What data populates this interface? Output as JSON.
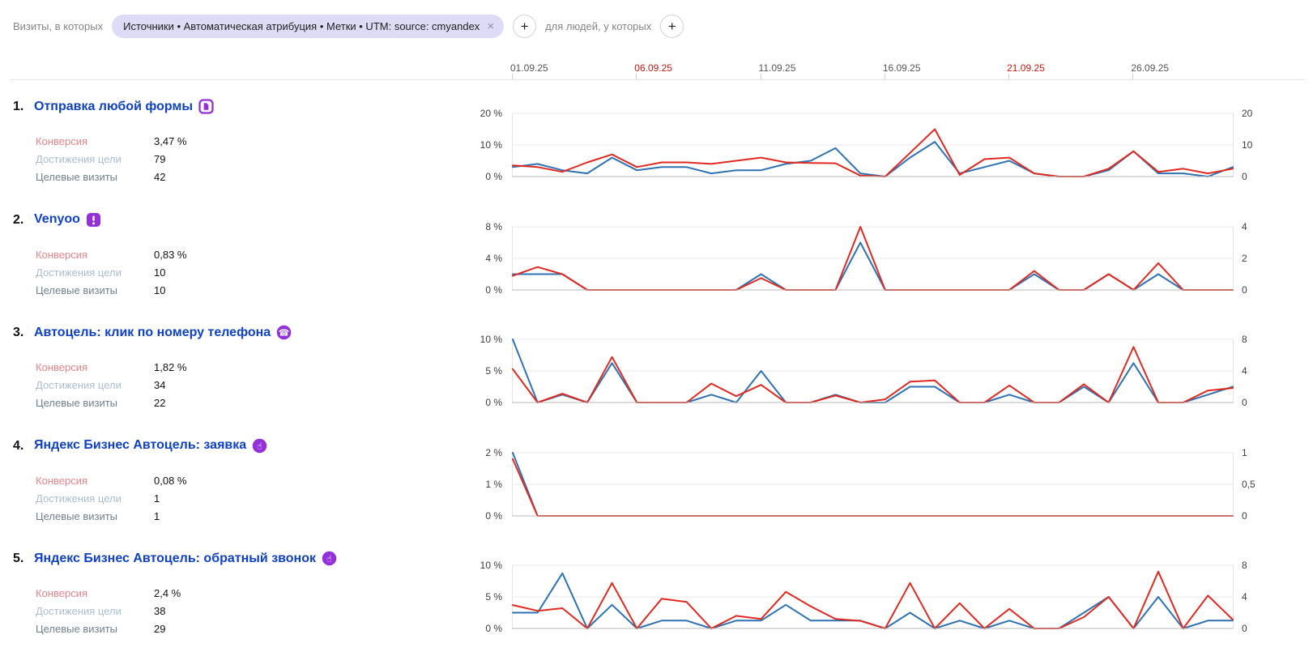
{
  "filter_bar": {
    "visits_label": "Визиты, в которых",
    "filter_chip": "Источники • Автоматическая атрибуция • Метки • UTM: source: cmyandex",
    "remove_chip_glyph": "×",
    "add_condition_glyph": "+",
    "people_label": "для людей, у которых",
    "add_people_condition_glyph": "+"
  },
  "date_axis": {
    "ticks": [
      {
        "label": "01.09.25",
        "day": 1,
        "weekend": false
      },
      {
        "label": "06.09.25",
        "day": 6,
        "weekend": true
      },
      {
        "label": "11.09.25",
        "day": 11,
        "weekend": false
      },
      {
        "label": "16.09.25",
        "day": 16,
        "weekend": false
      },
      {
        "label": "21.09.25",
        "day": 21,
        "weekend": true
      },
      {
        "label": "26.09.25",
        "day": 26,
        "weekend": false
      }
    ]
  },
  "metrics_labels": {
    "conversion": "Конверсия",
    "goal_reaches": "Достижения цели",
    "goal_visits": "Целевые визиты"
  },
  "goals": [
    {
      "index": "1.",
      "title": "Отправка любой формы",
      "icon": "form-icon",
      "conversion": "3,47 %",
      "goal_reaches": "79",
      "goal_visits": "42"
    },
    {
      "index": "2.",
      "title": "Venyoo",
      "icon": "exclamation-icon",
      "conversion": "0,83 %",
      "goal_reaches": "10",
      "goal_visits": "10"
    },
    {
      "index": "3.",
      "title": "Автоцель: клик по номеру телефона",
      "icon": "phone-icon",
      "conversion": "1,82 %",
      "goal_reaches": "34",
      "goal_visits": "22"
    },
    {
      "index": "4.",
      "title": "Яндекс Бизнес Автоцель: заявка",
      "icon": "pointer-icon",
      "conversion": "0,08 %",
      "goal_reaches": "1",
      "goal_visits": "1"
    },
    {
      "index": "5.",
      "title": "Яндекс Бизнес Автоцель: обратный звонок",
      "icon": "pointer-icon",
      "conversion": "2,4 %",
      "goal_reaches": "38",
      "goal_visits": "29"
    }
  ],
  "chart_data": [
    {
      "type": "line",
      "title": "Отправка любой формы",
      "x_range": "01.09.25 — 30.09.25, 30 точек (по дням)",
      "y_left": {
        "unit": "%",
        "max": 20,
        "labels": [
          "20 %",
          "10 %",
          "0 %"
        ]
      },
      "y_right": {
        "unit": "count",
        "max": 20,
        "labels": [
          "20",
          "10",
          "0"
        ]
      },
      "series": [
        {
          "name": "red (Конверсия, %)",
          "axis": "left",
          "values": [
            3.5,
            3.0,
            1.5,
            4.5,
            7.0,
            3.0,
            4.5,
            4.5,
            4.0,
            5.0,
            6.0,
            4.5,
            4.3,
            4.2,
            0.3,
            0,
            7.5,
            15.0,
            0.5,
            5.5,
            6.0,
            1.0,
            0,
            0,
            2.5,
            8.0,
            1.5,
            2.5,
            1.0,
            2.5
          ]
        },
        {
          "name": "blue (количество)",
          "axis": "right",
          "values": [
            3,
            4,
            2,
            1,
            6,
            2,
            3,
            3,
            1,
            2,
            2,
            4,
            5,
            9,
            1,
            0,
            6,
            11,
            1,
            3,
            5,
            1,
            0,
            0,
            2,
            8,
            1,
            1,
            0,
            3
          ]
        }
      ]
    },
    {
      "type": "line",
      "title": "Venyoo",
      "x_range": "01.09.25 — 30.09.25, 30 точек (по дням)",
      "y_left": {
        "unit": "%",
        "max": 8,
        "labels": [
          "8 %",
          "4 %",
          "0 %"
        ]
      },
      "y_right": {
        "unit": "count",
        "max": 4,
        "labels": [
          "4",
          "2",
          "0"
        ]
      },
      "series": [
        {
          "name": "red (Конверсия, %)",
          "axis": "left",
          "values": [
            1.8,
            2.9,
            2.0,
            0,
            0,
            0,
            0,
            0,
            0,
            0,
            1.5,
            0,
            0,
            0,
            8.0,
            0,
            0,
            0,
            0,
            0,
            0,
            2.4,
            0,
            0,
            2.0,
            0,
            3.4,
            0,
            0,
            0
          ]
        },
        {
          "name": "blue (количество)",
          "axis": "right",
          "values": [
            1,
            1,
            1,
            0,
            0,
            0,
            0,
            0,
            0,
            0,
            1,
            0,
            0,
            0,
            3,
            0,
            0,
            0,
            0,
            0,
            0,
            1,
            0,
            0,
            1,
            0,
            1,
            0,
            0,
            0
          ]
        }
      ]
    },
    {
      "type": "line",
      "title": "Автоцель: клик по номеру телефона",
      "x_range": "01.09.25 — 30.09.25, 30 точек (по дням)",
      "y_left": {
        "unit": "%",
        "max": 10,
        "labels": [
          "10 %",
          "5 %",
          "0 %"
        ]
      },
      "y_right": {
        "unit": "count",
        "max": 8,
        "labels": [
          "8",
          "4",
          "0"
        ]
      },
      "series": [
        {
          "name": "red (Конверсия, %)",
          "axis": "left",
          "values": [
            5.3,
            0,
            1.4,
            0,
            7.2,
            0,
            0,
            0,
            3.0,
            1.0,
            2.8,
            0,
            0,
            1.1,
            0,
            0.5,
            3.3,
            3.5,
            0,
            0,
            2.7,
            0,
            0,
            2.9,
            0,
            8.8,
            0,
            0,
            1.9,
            2.3
          ]
        },
        {
          "name": "blue (количество)",
          "axis": "right",
          "values": [
            8,
            0,
            1,
            0,
            5,
            0,
            0,
            0,
            1,
            0,
            4,
            0,
            0,
            1,
            0,
            0,
            2,
            2,
            0,
            0,
            1,
            0,
            0,
            2,
            0,
            5,
            0,
            0,
            1,
            2
          ]
        }
      ]
    },
    {
      "type": "line",
      "title": "Яндекс Бизнес Автоцель: заявка",
      "x_range": "01.09.25 — 30.09.25, 30 точек (по дням)",
      "y_left": {
        "unit": "%",
        "max": 2,
        "labels": [
          "2 %",
          "1 %",
          "0 %"
        ]
      },
      "y_right": {
        "unit": "count",
        "max": 1,
        "labels": [
          "1",
          "0,5",
          "0"
        ]
      },
      "series": [
        {
          "name": "red (Конверсия, %)",
          "axis": "left",
          "values": [
            1.8,
            0,
            0,
            0,
            0,
            0,
            0,
            0,
            0,
            0,
            0,
            0,
            0,
            0,
            0,
            0,
            0,
            0,
            0,
            0,
            0,
            0,
            0,
            0,
            0,
            0,
            0,
            0,
            0,
            0
          ]
        },
        {
          "name": "blue (количество)",
          "axis": "right",
          "values": [
            1,
            0,
            0,
            0,
            0,
            0,
            0,
            0,
            0,
            0,
            0,
            0,
            0,
            0,
            0,
            0,
            0,
            0,
            0,
            0,
            0,
            0,
            0,
            0,
            0,
            0,
            0,
            0,
            0,
            0
          ]
        }
      ]
    },
    {
      "type": "line",
      "title": "Яндекс Бизнес Автоцель: обратный звонок",
      "x_range": "01.09.25 — 30.09.25, 30 точек (по дням)",
      "y_left": {
        "unit": "%",
        "max": 10,
        "labels": [
          "10 %",
          "5 %",
          "0 %"
        ]
      },
      "y_right": {
        "unit": "count",
        "max": 8,
        "labels": [
          "8",
          "4",
          "0"
        ]
      },
      "series": [
        {
          "name": "red (Конверсия, %)",
          "axis": "left",
          "values": [
            3.7,
            2.8,
            3.2,
            0,
            7.2,
            0,
            4.7,
            4.2,
            0,
            2.0,
            1.5,
            5.8,
            3.5,
            1.5,
            1.2,
            0,
            7.2,
            0,
            4.0,
            0,
            3.1,
            0,
            0,
            1.8,
            5.0,
            0,
            9.0,
            0,
            5.2,
            1.4
          ]
        },
        {
          "name": "blue (количество)",
          "axis": "right",
          "values": [
            2,
            2,
            7,
            0,
            3,
            0,
            1,
            1,
            0,
            1,
            1,
            3,
            1,
            1,
            1,
            0,
            2,
            0,
            1,
            0,
            1,
            0,
            0,
            2,
            4,
            0,
            4,
            0,
            1,
            1
          ]
        }
      ]
    }
  ],
  "colors": {
    "red_line": "#e02a20",
    "blue_line": "#2e72b4",
    "goal_link": "#0f41c4",
    "goal_icon_purple": "#9330d9",
    "weekend_date": "#c41a11",
    "chip_background": "#dedbf7",
    "label_conversion": "#e8838b",
    "label_goal_reaches": "#aabdd2",
    "label_goal_visits": "#70808d"
  }
}
